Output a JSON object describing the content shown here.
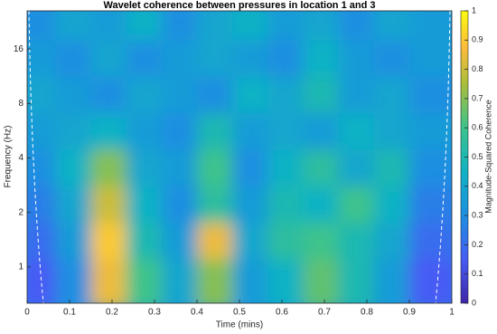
{
  "chart_data": {
    "type": "heatmap",
    "title": "Wavelet coherence between pressures in location 1 and 3",
    "x_label": "Time (mins)",
    "y_label": "Frequency (Hz)",
    "colorbar_label": "Magnitude-Squared Coherence",
    "xlim": [
      0,
      1
    ],
    "xticks": [
      0,
      0.1,
      0.2,
      0.3,
      0.4,
      0.5,
      0.6,
      0.7,
      0.8,
      0.9,
      1
    ],
    "ylim": [
      0.63,
      26
    ],
    "yticks": [
      1,
      2,
      4,
      8,
      16
    ],
    "y_scale": "log",
    "clim": [
      0,
      1
    ],
    "cticks": [
      0,
      0.1,
      0.2,
      0.3,
      0.4,
      0.5,
      0.6,
      0.7,
      0.8,
      0.9,
      1
    ],
    "z": [
      [
        0.3,
        0.4,
        0.35,
        0.45,
        0.3,
        0.4,
        0.45,
        0.35,
        0.4,
        0.3,
        0.4,
        0.35
      ],
      [
        0.35,
        0.3,
        0.4,
        0.3,
        0.35,
        0.4,
        0.35,
        0.3,
        0.45,
        0.35,
        0.3,
        0.35
      ],
      [
        0.4,
        0.35,
        0.3,
        0.4,
        0.35,
        0.3,
        0.45,
        0.4,
        0.5,
        0.35,
        0.4,
        0.3
      ],
      [
        0.35,
        0.4,
        0.45,
        0.35,
        0.3,
        0.5,
        0.35,
        0.4,
        0.35,
        0.45,
        0.4,
        0.35
      ],
      [
        0.3,
        0.45,
        0.7,
        0.4,
        0.35,
        0.6,
        0.3,
        0.45,
        0.55,
        0.4,
        0.5,
        0.3
      ],
      [
        0.25,
        0.4,
        0.8,
        0.45,
        0.3,
        0.55,
        0.35,
        0.5,
        0.45,
        0.6,
        0.45,
        0.25
      ],
      [
        0.2,
        0.35,
        0.9,
        0.5,
        0.35,
        0.85,
        0.4,
        0.55,
        0.6,
        0.5,
        0.4,
        0.2
      ],
      [
        0.15,
        0.3,
        0.85,
        0.6,
        0.4,
        0.7,
        0.35,
        0.45,
        0.65,
        0.5,
        0.35,
        0.15
      ]
    ]
  }
}
